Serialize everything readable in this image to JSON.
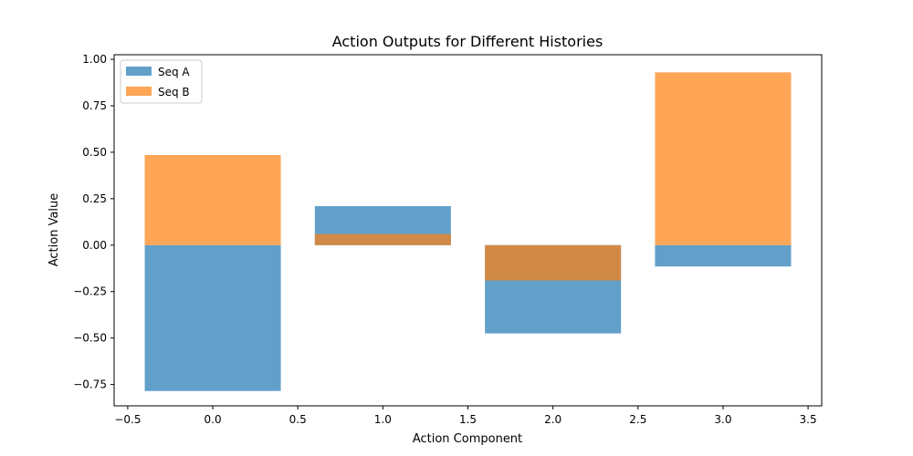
{
  "chart_data": {
    "type": "bar",
    "title": "Action Outputs for Different Histories",
    "xlabel": "Action Component",
    "ylabel": "Action Value",
    "x": [
      0,
      1,
      2,
      3
    ],
    "bar_width": 0.8,
    "xlim": [
      -0.58,
      3.58
    ],
    "ylim": [
      -0.865,
      1.025
    ],
    "xticks": [
      -0.5,
      0.0,
      0.5,
      1.0,
      1.5,
      2.0,
      2.5,
      3.0,
      3.5
    ],
    "xtick_labels": [
      "−0.5",
      "0.0",
      "0.5",
      "1.0",
      "1.5",
      "2.0",
      "2.5",
      "3.0",
      "3.5"
    ],
    "yticks": [
      -0.75,
      -0.5,
      -0.25,
      0.0,
      0.25,
      0.5,
      0.75,
      1.0
    ],
    "ytick_labels": [
      "−0.75",
      "−0.50",
      "−0.25",
      "0.00",
      "0.25",
      "0.50",
      "0.75",
      "1.00"
    ],
    "grid": false,
    "legend_position": "top-left",
    "series": [
      {
        "name": "Seq A",
        "values": [
          -0.785,
          0.21,
          -0.475,
          -0.115
        ],
        "color": "#1f77b4",
        "opacity": 0.7
      },
      {
        "name": "Seq B",
        "values": [
          0.485,
          0.06,
          -0.19,
          0.93
        ],
        "color": "#ff7f0e",
        "opacity": 0.7
      }
    ]
  }
}
